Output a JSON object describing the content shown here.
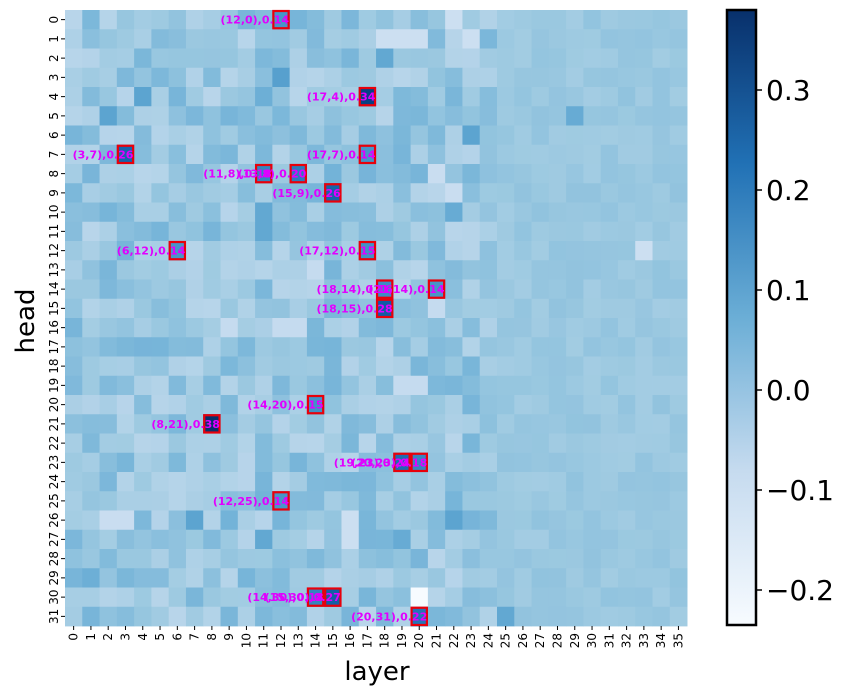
{
  "chart_data": {
    "type": "heatmap",
    "xlabel": "layer",
    "ylabel": "head",
    "layers": 36,
    "heads": 32,
    "x_ticks": [
      "0",
      "1",
      "2",
      "3",
      "4",
      "5",
      "6",
      "7",
      "8",
      "9",
      "10",
      "11",
      "12",
      "13",
      "14",
      "15",
      "16",
      "17",
      "18",
      "19",
      "20",
      "21",
      "22",
      "23",
      "24",
      "25",
      "26",
      "27",
      "28",
      "29",
      "30",
      "31",
      "32",
      "33",
      "34",
      "35"
    ],
    "y_ticks": [
      "0",
      "1",
      "2",
      "3",
      "4",
      "5",
      "6",
      "7",
      "8",
      "9",
      "10",
      "11",
      "12",
      "13",
      "14",
      "15",
      "16",
      "17",
      "18",
      "19",
      "20",
      "21",
      "22",
      "23",
      "24",
      "25",
      "26",
      "27",
      "28",
      "29",
      "30",
      "31"
    ],
    "colorbar": {
      "min": -0.235,
      "max": 0.38,
      "ticks": [
        -0.2,
        -0.1,
        0.0,
        0.1,
        0.2,
        0.3
      ],
      "tick_labels": [
        "−0.2",
        "−0.1",
        "0.0",
        "0.1",
        "0.2",
        "0.3"
      ]
    },
    "colors": {
      "low": "#f7fbff",
      "mid": "#9ecae1",
      "high": "#08306b",
      "box": "#e8000b",
      "annotation": "#e100ff"
    },
    "highlights": [
      {
        "layer": 12,
        "head": 0,
        "value": 0.14,
        "label": "(12,0),0.14"
      },
      {
        "layer": 17,
        "head": 4,
        "value": 0.34,
        "label": "(17,4),0.34"
      },
      {
        "layer": 3,
        "head": 7,
        "value": 0.26,
        "label": "(3,7),0.26"
      },
      {
        "layer": 17,
        "head": 7,
        "value": 0.14,
        "label": "(17,7),0.14"
      },
      {
        "layer": 11,
        "head": 8,
        "value": 0.18,
        "label": "(11,8),0.18"
      },
      {
        "layer": 13,
        "head": 8,
        "value": 0.2,
        "label": "(13,8),0.20"
      },
      {
        "layer": 15,
        "head": 9,
        "value": 0.26,
        "label": "(15,9),0.26"
      },
      {
        "layer": 6,
        "head": 12,
        "value": 0.14,
        "label": "(6,12),0.14"
      },
      {
        "layer": 17,
        "head": 12,
        "value": 0.15,
        "label": "(17,12),0.15"
      },
      {
        "layer": 18,
        "head": 14,
        "value": 0.16,
        "label": "(18,14),0.16"
      },
      {
        "layer": 21,
        "head": 14,
        "value": 0.14,
        "label": "(21,14),0.14"
      },
      {
        "layer": 18,
        "head": 15,
        "value": 0.28,
        "label": "(18,15),0.28"
      },
      {
        "layer": 14,
        "head": 20,
        "value": 0.15,
        "label": "(14,20),0.15"
      },
      {
        "layer": 8,
        "head": 21,
        "value": 0.38,
        "label": "(8,21),0.38"
      },
      {
        "layer": 19,
        "head": 23,
        "value": 0.24,
        "label": "(19,23),0.24"
      },
      {
        "layer": 20,
        "head": 23,
        "value": 0.18,
        "label": "(20,23),0.18"
      },
      {
        "layer": 12,
        "head": 25,
        "value": 0.14,
        "label": "(12,25),0.14"
      },
      {
        "layer": 14,
        "head": 30,
        "value": 0.18,
        "label": "(14,30),0.18"
      },
      {
        "layer": 15,
        "head": 30,
        "value": 0.27,
        "label": "(15,30),0.27"
      },
      {
        "layer": 20,
        "head": 31,
        "value": 0.22,
        "label": "(20,31),0.22"
      }
    ],
    "notable_cells": [
      {
        "layer": 4,
        "head": 4,
        "value": 0.1
      },
      {
        "layer": 2,
        "head": 5,
        "value": 0.1
      },
      {
        "layer": 12,
        "head": 3,
        "value": 0.11
      },
      {
        "layer": 18,
        "head": 2,
        "value": 0.09
      },
      {
        "layer": 23,
        "head": 6,
        "value": 0.1
      },
      {
        "layer": 29,
        "head": 5,
        "value": 0.08
      },
      {
        "layer": 11,
        "head": 4,
        "value": 0.07
      },
      {
        "layer": 11,
        "head": 10,
        "value": 0.09
      },
      {
        "layer": 11,
        "head": 11,
        "value": 0.09
      },
      {
        "layer": 22,
        "head": 10,
        "value": 0.08
      },
      {
        "layer": 15,
        "head": 8,
        "value": 0.06
      },
      {
        "layer": 15,
        "head": 18,
        "value": 0.05
      },
      {
        "layer": 7,
        "head": 26,
        "value": 0.1
      },
      {
        "layer": 22,
        "head": 26,
        "value": 0.1
      },
      {
        "layer": 11,
        "head": 27,
        "value": 0.09
      },
      {
        "layer": 19,
        "head": 27,
        "value": 0.08
      },
      {
        "layer": 1,
        "head": 29,
        "value": 0.07
      },
      {
        "layer": 25,
        "head": 31,
        "value": 0.09
      },
      {
        "layer": 9,
        "head": 26,
        "value": 0.06
      },
      {
        "layer": 11,
        "head": 25,
        "value": 0.06
      },
      {
        "layer": 20,
        "head": 30,
        "value": -0.235
      },
      {
        "layer": 18,
        "head": 1,
        "value": -0.1
      },
      {
        "layer": 19,
        "head": 1,
        "value": -0.1
      },
      {
        "layer": 20,
        "head": 1,
        "value": -0.1
      },
      {
        "layer": 22,
        "head": 0,
        "value": -0.1
      },
      {
        "layer": 23,
        "head": 1,
        "value": -0.1
      },
      {
        "layer": 33,
        "head": 12,
        "value": -0.1
      },
      {
        "layer": 16,
        "head": 26,
        "value": -0.1
      },
      {
        "layer": 16,
        "head": 27,
        "value": -0.1
      },
      {
        "layer": 2,
        "head": 26,
        "value": -0.09
      },
      {
        "layer": 3,
        "head": 26,
        "value": -0.09
      },
      {
        "layer": 14,
        "head": 13,
        "value": -0.08
      },
      {
        "layer": 12,
        "head": 16,
        "value": -0.08
      },
      {
        "layer": 13,
        "head": 16,
        "value": -0.08
      },
      {
        "layer": 21,
        "head": 8,
        "value": -0.09
      },
      {
        "layer": 19,
        "head": 19,
        "value": -0.08
      },
      {
        "layer": 20,
        "head": 19,
        "value": -0.08
      },
      {
        "layer": 22,
        "head": 9,
        "value": -0.09
      },
      {
        "layer": 9,
        "head": 16,
        "value": -0.08
      },
      {
        "layer": 21,
        "head": 15,
        "value": -0.08
      }
    ],
    "background_value": 0.0
  }
}
